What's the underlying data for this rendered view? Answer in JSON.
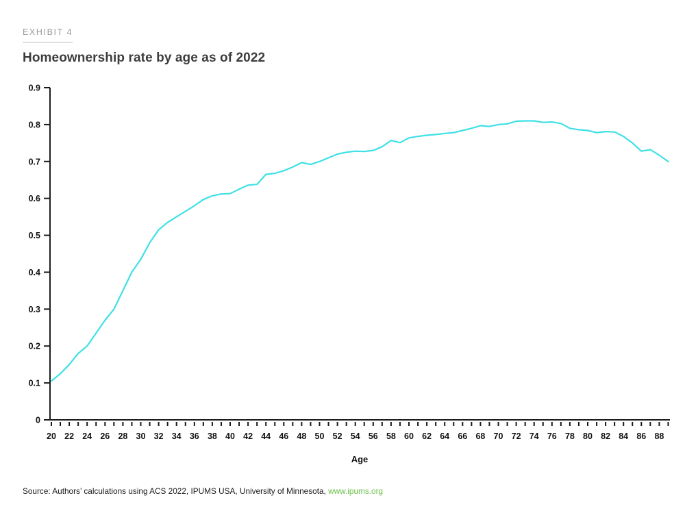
{
  "header": {
    "exhibit_label": "EXHIBIT 4",
    "title": "Homeownership rate by age as of 2022"
  },
  "chart_data": {
    "type": "line",
    "title": "Homeownership rate by age as of 2022",
    "xlabel": "Age",
    "ylabel": "",
    "ylim": [
      0,
      0.9
    ],
    "y_tick_step": 0.1,
    "x_tick_step": 1,
    "x_label_step": 2,
    "grid": false,
    "legend": "none",
    "line_color": "#3EE0E6",
    "axis_color": "#1a1a1a",
    "series_name": "Homeownership rate",
    "x": [
      20,
      21,
      22,
      23,
      24,
      25,
      26,
      27,
      28,
      29,
      30,
      31,
      32,
      33,
      34,
      35,
      36,
      37,
      38,
      39,
      40,
      41,
      42,
      43,
      44,
      45,
      46,
      47,
      48,
      49,
      50,
      51,
      52,
      53,
      54,
      55,
      56,
      57,
      58,
      59,
      60,
      61,
      62,
      63,
      64,
      65,
      66,
      67,
      68,
      69,
      70,
      71,
      72,
      73,
      74,
      75,
      76,
      77,
      78,
      79,
      80,
      81,
      82,
      83,
      84,
      85,
      86,
      87,
      88,
      89
    ],
    "y": [
      0.105,
      0.125,
      0.15,
      0.18,
      0.2,
      0.235,
      0.27,
      0.3,
      0.35,
      0.4,
      0.435,
      0.48,
      0.515,
      0.535,
      0.55,
      0.565,
      0.58,
      0.597,
      0.607,
      0.612,
      0.613,
      0.625,
      0.636,
      0.638,
      0.665,
      0.668,
      0.675,
      0.685,
      0.697,
      0.692,
      0.7,
      0.71,
      0.72,
      0.725,
      0.728,
      0.727,
      0.73,
      0.74,
      0.757,
      0.751,
      0.764,
      0.768,
      0.771,
      0.773,
      0.776,
      0.778,
      0.784,
      0.79,
      0.797,
      0.795,
      0.8,
      0.802,
      0.809,
      0.81,
      0.81,
      0.806,
      0.807,
      0.803,
      0.79,
      0.786,
      0.784,
      0.778,
      0.781,
      0.78,
      0.768,
      0.75,
      0.728,
      0.732,
      0.717,
      0.7
    ]
  },
  "source": {
    "prefix": "Source: Authors’ calculations using ACS 2022, IPUMS USA, University of Minnesota, ",
    "link": "www.ipums.org",
    "link_color": "#6CC24A"
  }
}
